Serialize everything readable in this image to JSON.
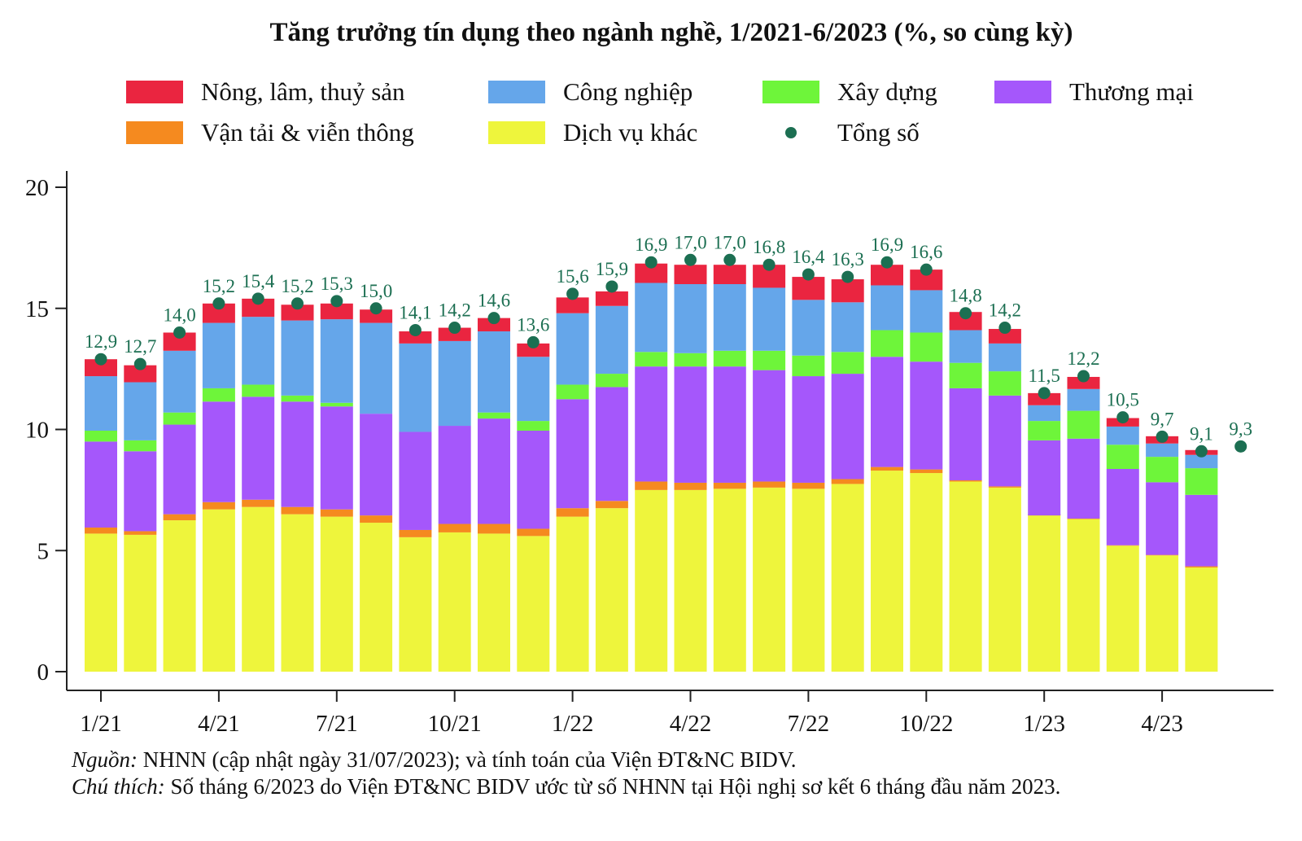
{
  "chart_data": {
    "type": "bar",
    "stacked": true,
    "title": "Tăng trưởng tín dụng theo ngành nghề, 1/2021-6/2023 (%, so cùng kỳ)",
    "xlabel": "",
    "ylabel": "",
    "ylim": [
      0,
      20
    ],
    "yticks": [
      "0",
      "5",
      "10",
      "15",
      "20"
    ],
    "ytick_values": [
      0,
      5,
      10,
      15,
      20
    ],
    "xtick_labels": [
      "1/21",
      "4/21",
      "7/21",
      "10/21",
      "1/22",
      "4/22",
      "7/22",
      "10/22",
      "1/23",
      "4/23"
    ],
    "xtick_indices": [
      0,
      3,
      6,
      9,
      12,
      15,
      18,
      21,
      24,
      27
    ],
    "categories": [
      "1/21",
      "2/21",
      "3/21",
      "4/21",
      "5/21",
      "6/21",
      "7/21",
      "8/21",
      "9/21",
      "10/21",
      "11/21",
      "12/21",
      "1/22",
      "2/22",
      "3/22",
      "4/22",
      "5/22",
      "6/22",
      "7/22",
      "8/22",
      "9/22",
      "10/22",
      "11/22",
      "12/22",
      "1/23",
      "2/23",
      "3/23",
      "4/23",
      "5/23",
      "6/23"
    ],
    "legend_position": "top",
    "series": [
      {
        "name": "Dịch vụ khác",
        "color": "#eef53c",
        "values": [
          5.7,
          5.65,
          6.25,
          6.7,
          6.8,
          6.5,
          6.4,
          6.15,
          5.55,
          5.75,
          5.7,
          5.6,
          6.4,
          6.75,
          7.5,
          7.5,
          7.55,
          7.6,
          7.55,
          7.75,
          8.3,
          8.2,
          7.85,
          7.6,
          6.5,
          6.3,
          5.2,
          4.8,
          4.3,
          null
        ]
      },
      {
        "name": "Vận tải & viễn thông",
        "color": "#f58a1f",
        "values": [
          0.25,
          0.15,
          0.25,
          0.3,
          0.3,
          0.3,
          0.3,
          0.3,
          0.3,
          0.35,
          0.4,
          0.3,
          0.35,
          0.3,
          0.35,
          0.3,
          0.25,
          0.25,
          0.25,
          0.2,
          0.15,
          0.15,
          0.05,
          0.05,
          -0.05,
          0.02,
          0.02,
          0.02,
          0.05,
          null
        ]
      },
      {
        "name": "Thương mại",
        "color": "#a557fb",
        "values": [
          3.55,
          3.3,
          3.7,
          4.15,
          4.25,
          4.35,
          4.25,
          4.2,
          4.05,
          4.05,
          4.35,
          4.05,
          4.5,
          4.7,
          4.75,
          4.8,
          4.8,
          4.6,
          4.4,
          4.35,
          4.55,
          4.45,
          3.8,
          3.75,
          3.1,
          3.3,
          3.15,
          3.0,
          2.95,
          null
        ]
      },
      {
        "name": "Xây dựng",
        "color": "#6ef53a",
        "values": [
          0.45,
          0.45,
          0.5,
          0.55,
          0.5,
          0.25,
          0.15,
          0.0,
          0.0,
          0.0,
          0.25,
          0.4,
          0.6,
          0.55,
          0.6,
          0.55,
          0.65,
          0.8,
          0.85,
          0.9,
          1.1,
          1.2,
          1.05,
          1.0,
          0.8,
          1.15,
          1.0,
          1.05,
          1.1,
          null
        ]
      },
      {
        "name": "Công nghiệp",
        "color": "#65a6ea",
        "values": [
          2.25,
          2.4,
          2.55,
          2.7,
          2.8,
          3.1,
          3.45,
          3.75,
          3.65,
          3.5,
          3.35,
          2.65,
          2.95,
          2.8,
          2.85,
          2.85,
          2.75,
          2.6,
          2.3,
          2.05,
          1.85,
          1.75,
          1.35,
          1.15,
          0.65,
          0.9,
          0.75,
          0.55,
          0.55,
          null
        ]
      },
      {
        "name": "Nông, lâm, thuỷ sản",
        "color": "#ea2540",
        "values": [
          0.7,
          0.7,
          0.75,
          0.8,
          0.75,
          0.65,
          0.65,
          0.55,
          0.5,
          0.55,
          0.55,
          0.55,
          0.65,
          0.6,
          0.8,
          0.8,
          0.8,
          0.95,
          0.95,
          0.95,
          0.85,
          0.85,
          0.75,
          0.6,
          0.5,
          0.5,
          0.35,
          0.3,
          0.2,
          null
        ]
      }
    ],
    "total": {
      "name": "Tổng số",
      "color": "#1c6f52",
      "values": [
        12.9,
        12.7,
        14.0,
        15.2,
        15.4,
        15.2,
        15.3,
        15.0,
        14.1,
        14.2,
        14.6,
        13.6,
        15.6,
        15.9,
        16.9,
        17.0,
        17.0,
        16.8,
        16.4,
        16.3,
        16.9,
        16.6,
        14.8,
        14.2,
        11.5,
        12.2,
        10.5,
        9.7,
        9.1,
        9.3
      ],
      "labels": [
        "12,9",
        "12,7",
        "14,0",
        "15,2",
        "15,4",
        "15,2",
        "15,3",
        "15,0",
        "14,1",
        "14,2",
        "14,6",
        "13,6",
        "15,6",
        "15,9",
        "16,9",
        "17,0",
        "17,0",
        "16,8",
        "16,4",
        "16,3",
        "16,9",
        "16,6",
        "14,8",
        "14,2",
        "11,5",
        "12,2",
        "10,5",
        "9,7",
        "9,1",
        "9,3"
      ]
    }
  },
  "legend": {
    "items": [
      {
        "label": "Nông, lâm, thuỷ sản",
        "color": "#ea2540"
      },
      {
        "label": "Công nghiệp",
        "color": "#65a6ea"
      },
      {
        "label": "Xây dựng",
        "color": "#6ef53a"
      },
      {
        "label": "Thương mại",
        "color": "#a557fb"
      },
      {
        "label": "Vận tải & viễn thông",
        "color": "#f58a1f"
      },
      {
        "label": "Dịch vụ khác",
        "color": "#eef53c"
      },
      {
        "label": "Tổng số",
        "color": "#1c6f52"
      }
    ]
  },
  "notes": {
    "source_label": "Nguồn:",
    "source_text": " NHNN (cập nhật ngày 31/07/2023); và tính toán của Viện ĐT&NC BIDV.",
    "note_label": "Chú thích:",
    "note_text": " Số tháng 6/2023 do Viện ĐT&NC BIDV ước từ số NHNN tại Hội nghị sơ kết 6 tháng đầu năm 2023."
  }
}
